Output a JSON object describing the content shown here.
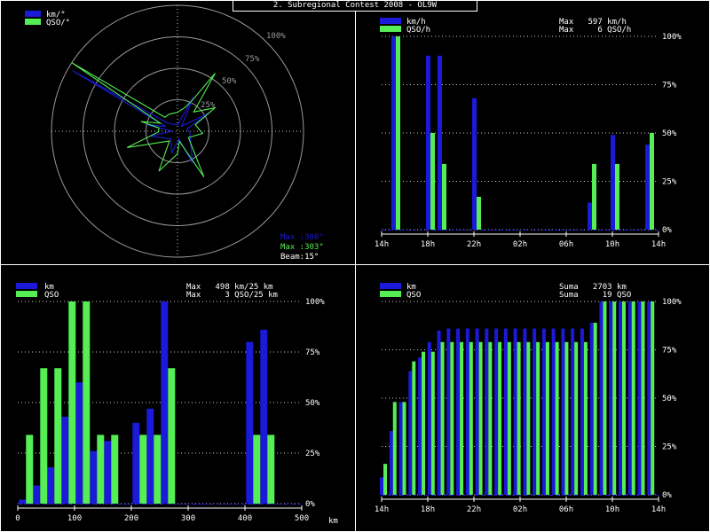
{
  "title": "2. Subregional Contest 2008 - OL9W",
  "colors": {
    "blue": "#1a1ad8",
    "green": "#55ee55",
    "grid": "#cccccc",
    "text": "#ffffff",
    "dim": "#9a9a9a"
  },
  "panels": {
    "polar": {
      "legend": [
        "km/°",
        "QSO/°"
      ],
      "ring_labels": [
        "25%",
        "50%",
        "75%",
        "100%"
      ],
      "max_km_label": "Max :300°",
      "max_qso_label": "Max :303°",
      "beam_label": "Beam:15°"
    },
    "rate": {
      "legend": [
        "km/h",
        "QSO/h"
      ],
      "stats": [
        "Max   597 km/h",
        "Max     6 QSO/h"
      ],
      "y_labels": [
        "0%",
        "25%",
        "50%",
        "75%",
        "100%"
      ],
      "x_labels": [
        "14h",
        "18h",
        "22h",
        "02h",
        "06h",
        "10h",
        "14h"
      ]
    },
    "distance": {
      "legend": [
        "km",
        "QSO"
      ],
      "stats": [
        "Max   498 km/25 km",
        "Max     3 QSO/25 km"
      ],
      "y_labels": [
        "0%",
        "25%",
        "50%",
        "75%",
        "100%"
      ],
      "x_labels": [
        "0",
        "100",
        "200",
        "300",
        "400",
        "500"
      ],
      "x_unit": "km"
    },
    "cumulative": {
      "legend": [
        "km",
        "QSO"
      ],
      "stats": [
        "Suma   2703 km",
        "Suma     19 QSO"
      ],
      "y_labels": [
        "0%",
        "25%",
        "50%",
        "75%",
        "100%"
      ],
      "x_labels": [
        "14h",
        "18h",
        "22h",
        "02h",
        "06h",
        "10h",
        "14h"
      ]
    }
  },
  "chart_data": [
    {
      "type": "polar",
      "legend": [
        "km/°",
        "QSO/°"
      ],
      "beam_deg": 15,
      "max_km_deg": 300,
      "max_qso_deg": 303,
      "series": [
        {
          "name": "km/°",
          "points": [
            [
              0,
              5
            ],
            [
              25,
              30
            ],
            [
              38,
              5
            ],
            [
              60,
              30
            ],
            [
              75,
              8
            ],
            [
              100,
              10
            ],
            [
              155,
              28
            ],
            [
              170,
              6
            ],
            [
              195,
              18
            ],
            [
              220,
              8
            ],
            [
              260,
              22
            ],
            [
              270,
              4
            ],
            [
              282,
              25
            ],
            [
              292,
              10
            ],
            [
              300,
              96
            ],
            [
              310,
              10
            ]
          ]
        },
        {
          "name": "QSO/°",
          "points": [
            [
              0,
              15
            ],
            [
              18,
              20
            ],
            [
              26,
              28
            ],
            [
              33,
              55
            ],
            [
              40,
              20
            ],
            [
              58,
              35
            ],
            [
              70,
              15
            ],
            [
              95,
              20
            ],
            [
              120,
              10
            ],
            [
              150,
              42
            ],
            [
              170,
              8
            ],
            [
              180,
              18
            ],
            [
              205,
              35
            ],
            [
              220,
              10
            ],
            [
              252,
              42
            ],
            [
              268,
              15
            ],
            [
              280,
              15
            ],
            [
              285,
              30
            ],
            [
              295,
              15
            ],
            [
              303,
              100
            ],
            [
              318,
              15
            ],
            [
              335,
              15
            ]
          ]
        }
      ]
    },
    {
      "type": "bar",
      "title": "rate",
      "x_hours": [
        12.5,
        13,
        15,
        16,
        17,
        18,
        19,
        20,
        22,
        23,
        8,
        9,
        10
      ],
      "categories": [
        "12.5h",
        "13h",
        "15h",
        "16h",
        "17h",
        "18h",
        "19h",
        "20h",
        "22h",
        "23h",
        "08h",
        "09h",
        "10h"
      ],
      "series": [
        {
          "name": "km/h",
          "values_pct": [
            0,
            44,
            100,
            0,
            0,
            90,
            90,
            0,
            68,
            0,
            14,
            0,
            49
          ]
        },
        {
          "name": "QSO/h",
          "values_pct": [
            0,
            50,
            100,
            0,
            0,
            50,
            34,
            0,
            17,
            0,
            34,
            0,
            34
          ]
        }
      ],
      "ylim": [
        0,
        100
      ]
    },
    {
      "type": "bar",
      "title": "distance",
      "bin_km": 25,
      "bins_start_km": [
        0,
        25,
        50,
        75,
        100,
        125,
        150,
        175,
        200,
        225,
        250,
        275,
        300,
        325,
        350,
        375,
        400,
        425,
        450,
        475
      ],
      "series": [
        {
          "name": "km",
          "values_pct": [
            2,
            9,
            18,
            43,
            60,
            26,
            31,
            0,
            40,
            47,
            100,
            0,
            0,
            0,
            0,
            0,
            80,
            86,
            0,
            0
          ]
        },
        {
          "name": "QSO",
          "values_pct": [
            34,
            67,
            67,
            100,
            100,
            34,
            34,
            0,
            34,
            34,
            67,
            0,
            0,
            0,
            0,
            0,
            34,
            34,
            0,
            0
          ]
        }
      ],
      "ylim": [
        0,
        100
      ]
    },
    {
      "type": "bar",
      "title": "cumulative",
      "series": [
        {
          "name": "km",
          "values_pct": [
            9,
            33,
            48,
            64,
            71,
            79,
            85,
            86,
            86,
            86,
            86,
            86,
            86,
            86,
            86,
            86,
            86,
            86,
            86,
            86,
            86,
            86,
            89,
            100,
            100,
            100,
            100,
            100,
            100
          ]
        },
        {
          "name": "QSO",
          "values_pct": [
            16,
            48,
            48,
            69,
            74,
            74,
            79,
            79,
            79,
            79,
            79,
            79,
            79,
            79,
            79,
            79,
            79,
            79,
            79,
            79,
            79,
            79,
            89,
            100,
            100,
            100,
            100,
            100,
            100
          ]
        }
      ],
      "ylim": [
        0,
        100
      ]
    }
  ]
}
